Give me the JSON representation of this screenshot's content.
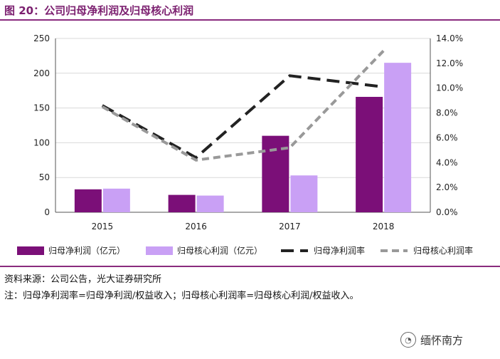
{
  "figure": {
    "title": "图 20：公司归母净利润及归母核心利润",
    "source": "资料来源：公司公告，光大证券研究所",
    "note": "注：归母净利润率=归母净利润/权益收入；归母核心利润率=归母核心利润/权益收入。",
    "watermark": "缅怀南方",
    "watermark_icon": "wechat-icon"
  },
  "colors": {
    "accent": "#8a2b7e",
    "net_profit_bar": "#7b0f78",
    "core_profit_bar": "#c9a0f5",
    "net_margin_line": "#222222",
    "core_margin_line": "#999999"
  },
  "chart_data": {
    "type": "bar",
    "categories": [
      "2015",
      "2016",
      "2017",
      "2018"
    ],
    "ylim": [
      0,
      250
    ],
    "yticks": [
      "0",
      "50",
      "100",
      "150",
      "200",
      "250"
    ],
    "y2lim": [
      0,
      14
    ],
    "y2ticks": [
      "0.0%",
      "2.0%",
      "4.0%",
      "6.0%",
      "8.0%",
      "10.0%",
      "12.0%",
      "14.0%"
    ],
    "grid": true,
    "legend_position": "bottom",
    "series": [
      {
        "name": "归母净利润（亿元）",
        "type": "bar",
        "axis": "left",
        "values": [
          33,
          25,
          110,
          166
        ]
      },
      {
        "name": "归母核心利润（亿元）",
        "type": "bar",
        "axis": "left",
        "values": [
          34,
          24,
          53,
          215
        ]
      },
      {
        "name": "归母净利润率",
        "type": "line",
        "axis": "right",
        "style": "dashed",
        "values": [
          8.6,
          4.4,
          11.0,
          10.1
        ]
      },
      {
        "name": "归母核心利润率",
        "type": "line",
        "axis": "right",
        "style": "dashed",
        "values": [
          8.5,
          4.2,
          5.2,
          13.0
        ]
      }
    ]
  }
}
